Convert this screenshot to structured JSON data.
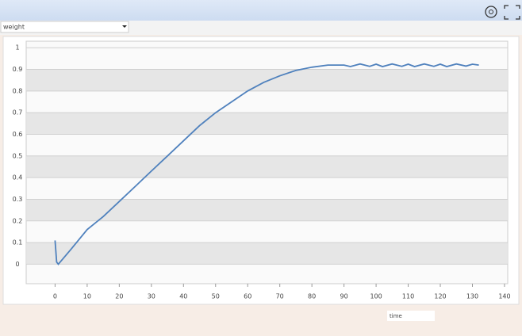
{
  "selector": "weight",
  "chart_data": {
    "type": "line",
    "x_label": "time",
    "x": [
      0,
      0.5,
      1,
      5,
      10,
      15,
      20,
      25,
      30,
      35,
      40,
      45,
      50,
      55,
      60,
      65,
      70,
      75,
      80,
      85,
      88,
      90,
      92,
      95,
      98,
      100,
      102,
      105,
      108,
      110,
      112,
      115,
      118,
      120,
      122,
      125,
      128,
      130,
      132
    ],
    "values": [
      0.11,
      0.01,
      0,
      0.07,
      0.16,
      0.22,
      0.29,
      0.36,
      0.43,
      0.5,
      0.57,
      0.64,
      0.7,
      0.75,
      0.8,
      0.84,
      0.87,
      0.895,
      0.91,
      0.92,
      0.92,
      0.92,
      0.913,
      0.925,
      0.914,
      0.924,
      0.913,
      0.925,
      0.914,
      0.924,
      0.913,
      0.925,
      0.914,
      0.924,
      0.913,
      0.925,
      0.915,
      0.924,
      0.92
    ],
    "color": "#4f81bd",
    "xlim": [
      -9,
      141
    ],
    "ylim": [
      -0.09,
      1.03
    ],
    "xticks": [
      0,
      10,
      20,
      30,
      40,
      50,
      60,
      70,
      80,
      90,
      100,
      110,
      120,
      130,
      140
    ],
    "yticks": [
      0,
      0.1,
      0.2,
      0.3,
      0.4,
      0.5,
      0.6,
      0.7,
      0.8,
      0.9,
      1
    ],
    "grid": true,
    "banded": true
  }
}
